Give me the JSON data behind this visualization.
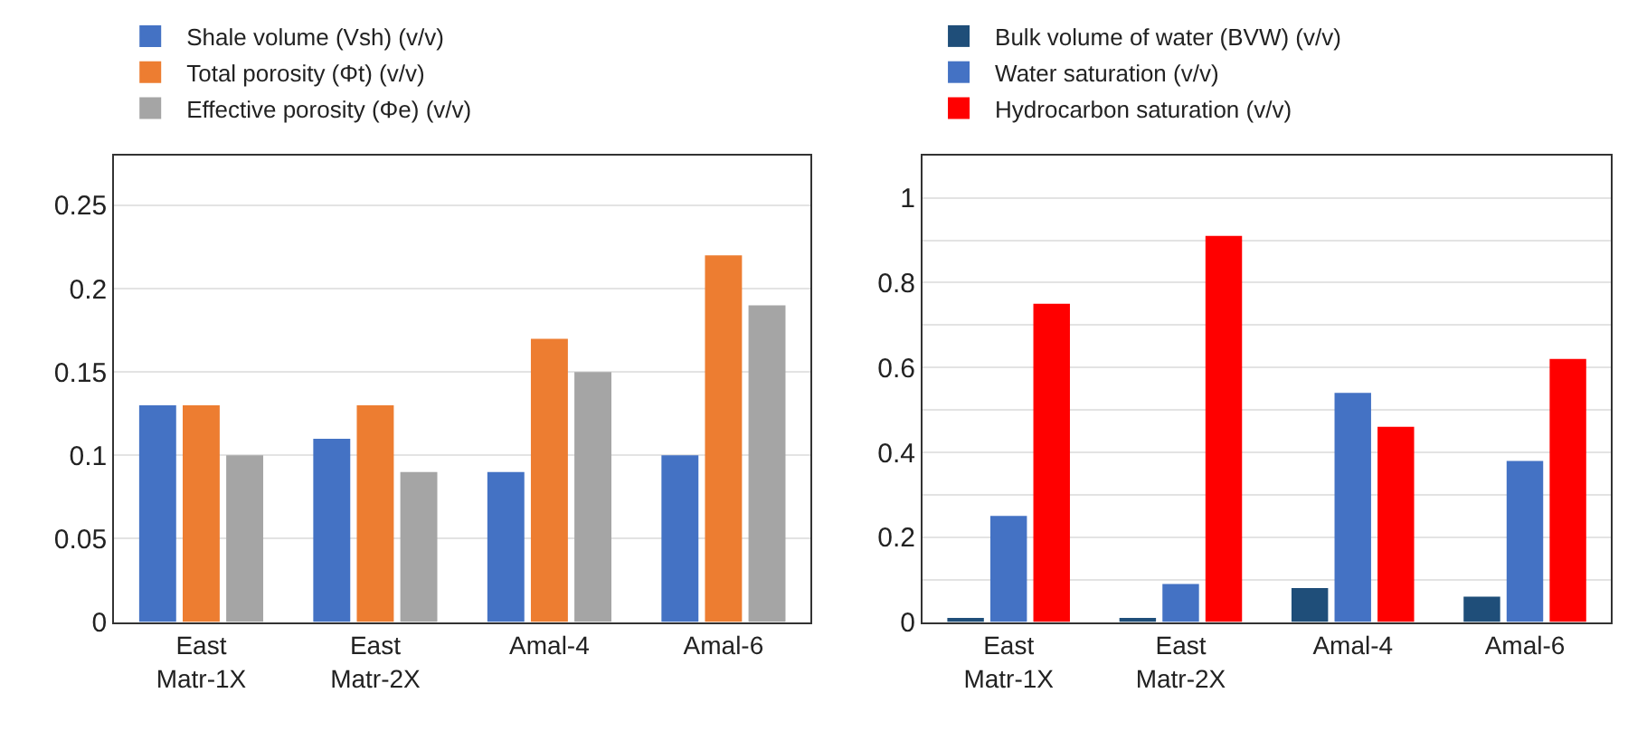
{
  "chart_data": [
    {
      "type": "bar",
      "categories": [
        "East\nMatr-1X",
        "East\nMatr-2X",
        "Amal-4",
        "Amal-6"
      ],
      "series": [
        {
          "name": "Shale volume (Vsh) (v/v)",
          "color": "#4472c4",
          "values": [
            0.13,
            0.11,
            0.09,
            0.1
          ]
        },
        {
          "name": "Total porosity (Φt) (v/v)",
          "color": "#ed7d31",
          "values": [
            0.13,
            0.13,
            0.17,
            0.22
          ]
        },
        {
          "name": "Effective porosity (Φe) (v/v)",
          "color": "#a5a5a5",
          "values": [
            0.1,
            0.09,
            0.15,
            0.19
          ]
        }
      ],
      "ylim": [
        0,
        0.28
      ],
      "yticks": [
        0,
        0.05,
        0.1,
        0.15,
        0.2,
        0.25
      ],
      "grid": "y",
      "legend": "top left"
    },
    {
      "type": "bar",
      "categories": [
        "East\nMatr-1X",
        "East\nMatr-2X",
        "Amal-4",
        "Amal-6"
      ],
      "series": [
        {
          "name": "Bulk volume of water (BVW) (v/v)",
          "color": "#1f4e79",
          "values": [
            0.01,
            0.01,
            0.08,
            0.06
          ]
        },
        {
          "name": "Water saturation (v/v)",
          "color": "#4472c4",
          "values": [
            0.25,
            0.09,
            0.54,
            0.38
          ]
        },
        {
          "name": "Hydrocarbon saturation (v/v)",
          "color": "#ff0000",
          "values": [
            0.75,
            0.91,
            0.46,
            0.62
          ]
        }
      ],
      "ylim": [
        0,
        1.1
      ],
      "yticks": [
        0,
        {
          "value": 0.1,
          "label": null
        },
        0.2,
        {
          "value": 0.3,
          "label": null
        },
        0.4,
        {
          "value": 0.5,
          "label": null
        },
        0.6,
        {
          "value": 0.7,
          "label": null
        },
        0.8,
        {
          "value": 0.9,
          "label": null
        },
        1,
        {
          "value": 1.1,
          "label": null
        }
      ],
      "grid": "y",
      "legend": "top left"
    }
  ]
}
